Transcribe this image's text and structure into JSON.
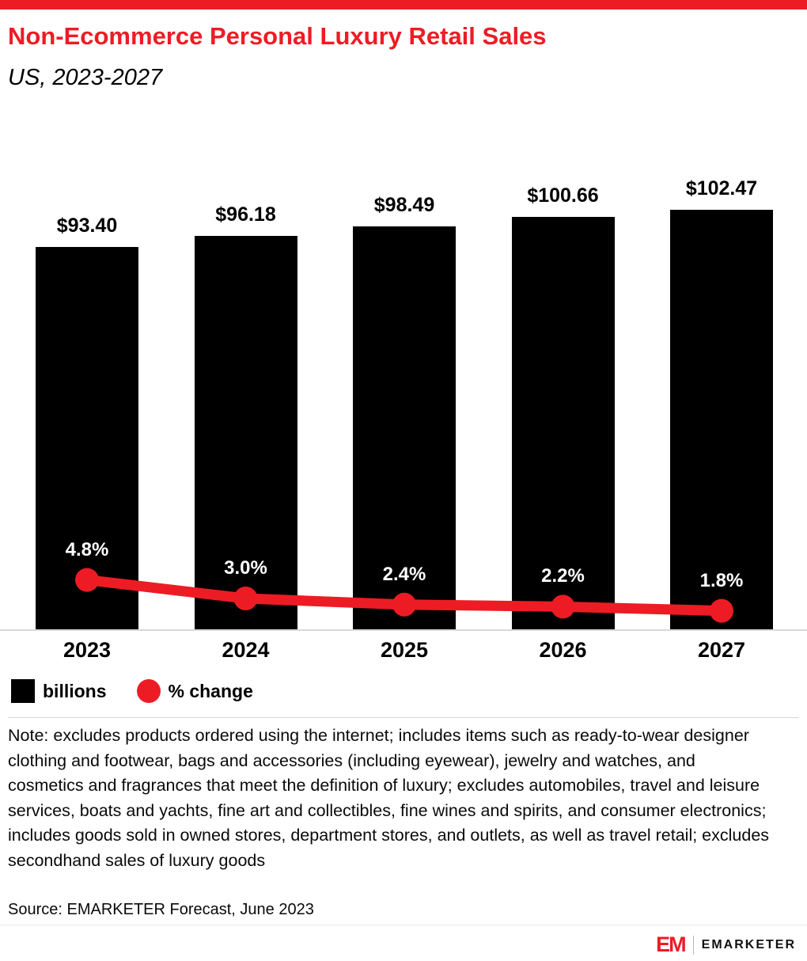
{
  "header": {
    "title": "Non-Ecommerce Personal Luxury Retail Sales",
    "subtitle": "US, 2023-2027"
  },
  "chart_data": {
    "type": "bar",
    "categories": [
      "2023",
      "2024",
      "2025",
      "2026",
      "2027"
    ],
    "series": [
      {
        "name": "billions",
        "type": "bar",
        "values": [
          93.4,
          96.18,
          98.49,
          100.66,
          102.47
        ],
        "labels": [
          "$93.40",
          "$96.18",
          "$98.49",
          "$100.66",
          "$102.47"
        ],
        "color": "#000000"
      },
      {
        "name": "% change",
        "type": "line",
        "values": [
          4.8,
          3.0,
          2.4,
          2.2,
          1.8
        ],
        "labels": [
          "4.8%",
          "3.0%",
          "2.4%",
          "2.2%",
          "1.8%"
        ],
        "color": "#ed1c24"
      }
    ],
    "legend": [
      {
        "label": "billions",
        "swatch": "square",
        "color": "#000000"
      },
      {
        "label": "% change",
        "swatch": "circle",
        "color": "#ed1c24"
      }
    ],
    "legend_position": "bottom-left",
    "grid": false,
    "ylim": [
      0,
      110
    ]
  },
  "note": "Note: excludes products ordered using the internet; includes items such as ready-to-wear designer clothing and footwear, bags and accessories (including eyewear), jewelry and watches, and cosmetics and fragrances that meet the definition of luxury; excludes automobiles, travel and leisure services, boats and yachts, fine art and collectibles, fine wines and spirits, and consumer electronics; includes goods sold in owned stores, department stores, and outlets, as well as travel retail; excludes secondhand sales of luxury goods",
  "source": "Source: EMARKETER Forecast, June 2023",
  "footer": {
    "logo_text": "EM",
    "brand": "EMARKETER"
  },
  "colors": {
    "accent": "#ed1c24",
    "bar": "#000000"
  }
}
